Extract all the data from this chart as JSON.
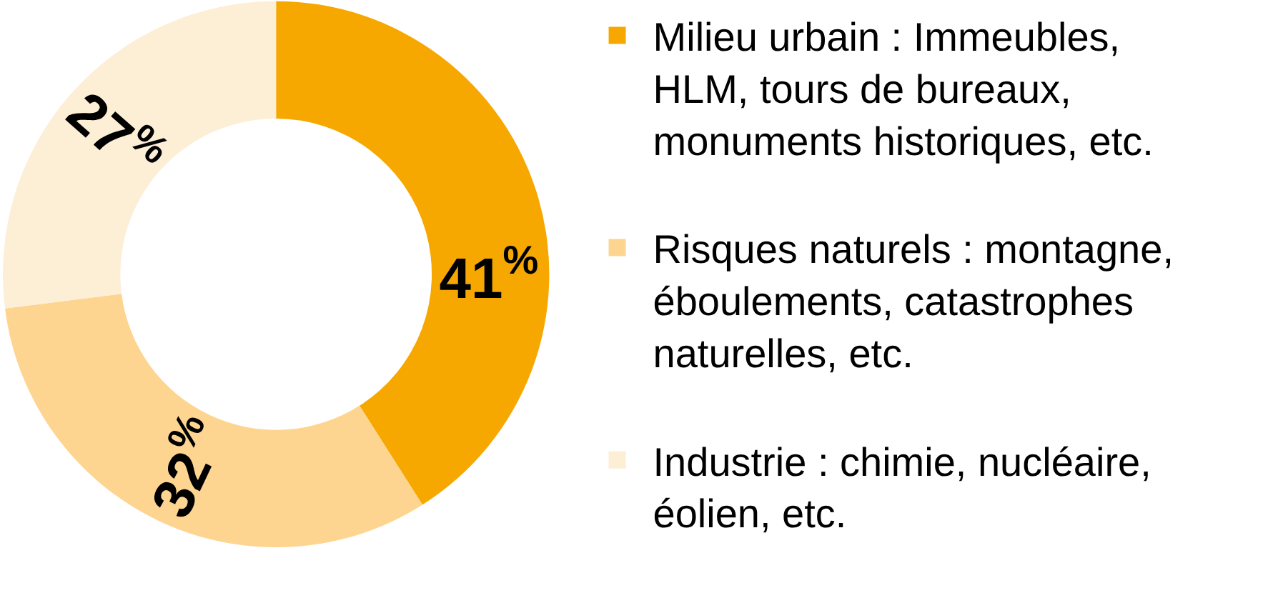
{
  "chart_data": {
    "type": "donut",
    "categories": [
      "Milieu urbain : Immeubles, HLM, tours de bureaux, monuments historiques, etc.",
      "Risques naturels : montagne, éboulements, catastrophes naturelles, etc.",
      "Industrie : chimie, nucléaire, éolien, etc."
    ],
    "values": [
      41,
      32,
      27
    ],
    "colors": [
      "#f7a800",
      "#fdd590",
      "#fdeed6"
    ],
    "value_labels": [
      "41$^{%}$",
      "32$^{%}$",
      "27$^{%}$"
    ],
    "legend": "right"
  }
}
